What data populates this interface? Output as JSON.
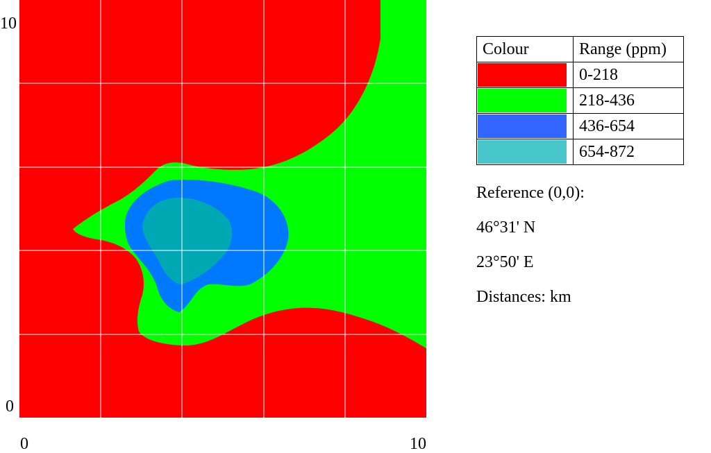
{
  "map": {
    "x_axis": {
      "min_label": "0",
      "max_label": "10"
    },
    "y_axis": {
      "min_label": "0",
      "max_label": "10"
    },
    "grid": true,
    "zone_colors": {
      "range_0_218": "#ff0000",
      "range_218_436": "#00ff00",
      "range_436_654": "#0078ff",
      "range_654_872": "#00a8b4",
      "grid_line": "#ffffff"
    }
  },
  "legend": {
    "header_colour": "Colour",
    "header_range": "Range (ppm)",
    "rows": [
      {
        "color": "#ff0000",
        "range": "0-218"
      },
      {
        "color": "#00ff00",
        "range": "218-436"
      },
      {
        "color": "#3366ff",
        "range": "436-654"
      },
      {
        "color": "#46c6c8",
        "range": "654-872"
      }
    ]
  },
  "info": {
    "reference": "Reference (0,0):",
    "latitude": "46°31' N",
    "longitude": "23°50' E",
    "distances": "Distances: km"
  }
}
